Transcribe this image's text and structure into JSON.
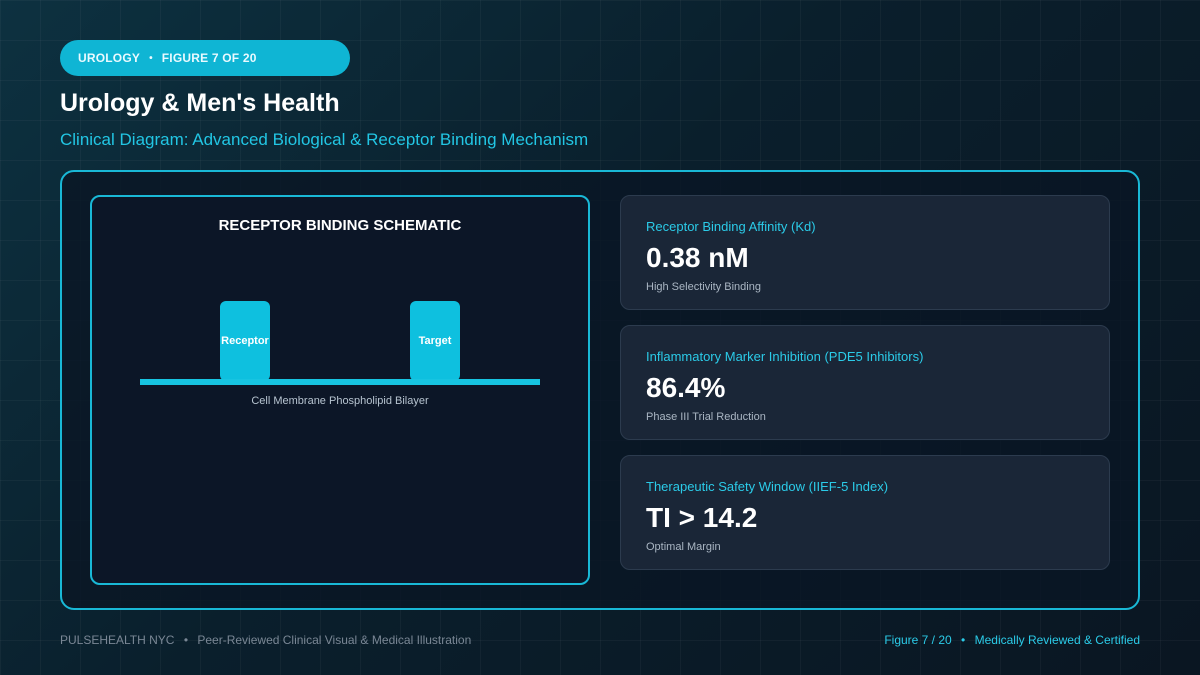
{
  "badge": {
    "category": "UROLOGY",
    "separator": "•",
    "figure": "FIGURE 7 OF 20"
  },
  "title": "Urology & Men's Health",
  "subtitle": "Clinical Diagram: Advanced Biological & Receptor Binding Mechanism",
  "schematic": {
    "title": "RECEPTOR BINDING SCHEMATIC",
    "receptor_label": "Receptor",
    "target_label": "Target",
    "membrane_label": "Cell Membrane Phospholipid Bilayer"
  },
  "metrics": [
    {
      "label": "Receptor Binding Affinity (Kd)",
      "value": "0.38 nM",
      "note": "High Selectivity Binding"
    },
    {
      "label": "Inflammatory Marker Inhibition (PDE5 Inhibitors)",
      "value": "86.4%",
      "note": "Phase III Trial Reduction"
    },
    {
      "label": "Therapeutic Safety Window (IIEF-5 Index)",
      "value": "TI > 14.2",
      "note": "Optimal Margin"
    }
  ],
  "footer": {
    "brand": "PULSEHEALTH NYC",
    "separator": "•",
    "tagline": "Peer-Reviewed Clinical Visual & Medical Illustration",
    "figure": "Figure 7 / 20",
    "certification": "Medically Reviewed & Certified"
  },
  "colors": {
    "accent": "#19b8d6",
    "background": "#0a1f2c",
    "card": "#1a2637"
  }
}
